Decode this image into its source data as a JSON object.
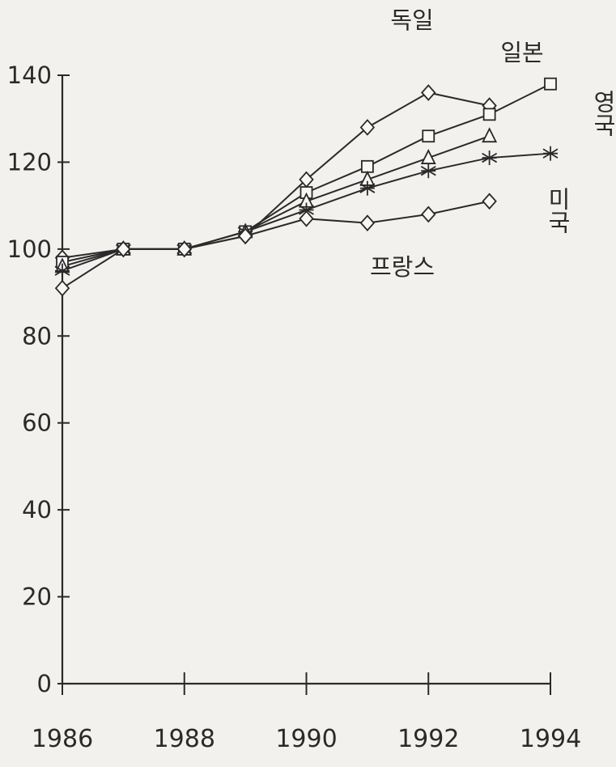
{
  "chart_data": {
    "type": "line",
    "title": "",
    "xlabel": "",
    "ylabel": "",
    "xlim": [
      1986,
      1994
    ],
    "ylim": [
      0,
      140
    ],
    "x_ticks": [
      1986,
      1988,
      1990,
      1992,
      1994
    ],
    "y_ticks": [
      0,
      20,
      40,
      60,
      80,
      100,
      120,
      140
    ],
    "grid": false,
    "series": [
      {
        "name": "독일",
        "marker": "diamond",
        "x": [
          1986,
          1987,
          1988,
          1989,
          1990,
          1991,
          1992,
          1993
        ],
        "y": [
          98,
          100,
          100,
          103,
          116,
          128,
          136,
          133
        ]
      },
      {
        "name": "일본",
        "marker": "square",
        "x": [
          1986,
          1987,
          1988,
          1989,
          1990,
          1991,
          1992,
          1993,
          1994
        ],
        "y": [
          97,
          100,
          100,
          104,
          113,
          119,
          126,
          131,
          138
        ]
      },
      {
        "name": "영국",
        "marker": "triangle",
        "x": [
          1986,
          1987,
          1988,
          1989,
          1990,
          1991,
          1992,
          1993
        ],
        "y": [
          96,
          100,
          100,
          104,
          111,
          116,
          121,
          126
        ]
      },
      {
        "name": "미국",
        "marker": "star",
        "x": [
          1986,
          1987,
          1988,
          1989,
          1990,
          1991,
          1992,
          1993,
          1994
        ],
        "y": [
          95,
          100,
          100,
          104,
          109,
          114,
          118,
          121,
          122
        ]
      },
      {
        "name": "프랑스",
        "marker": "diamond",
        "x": [
          1986,
          1987,
          1988,
          1989,
          1990,
          1991,
          1992,
          1993
        ],
        "y": [
          91,
          100,
          100,
          103,
          107,
          106,
          108,
          111
        ]
      }
    ]
  }
}
